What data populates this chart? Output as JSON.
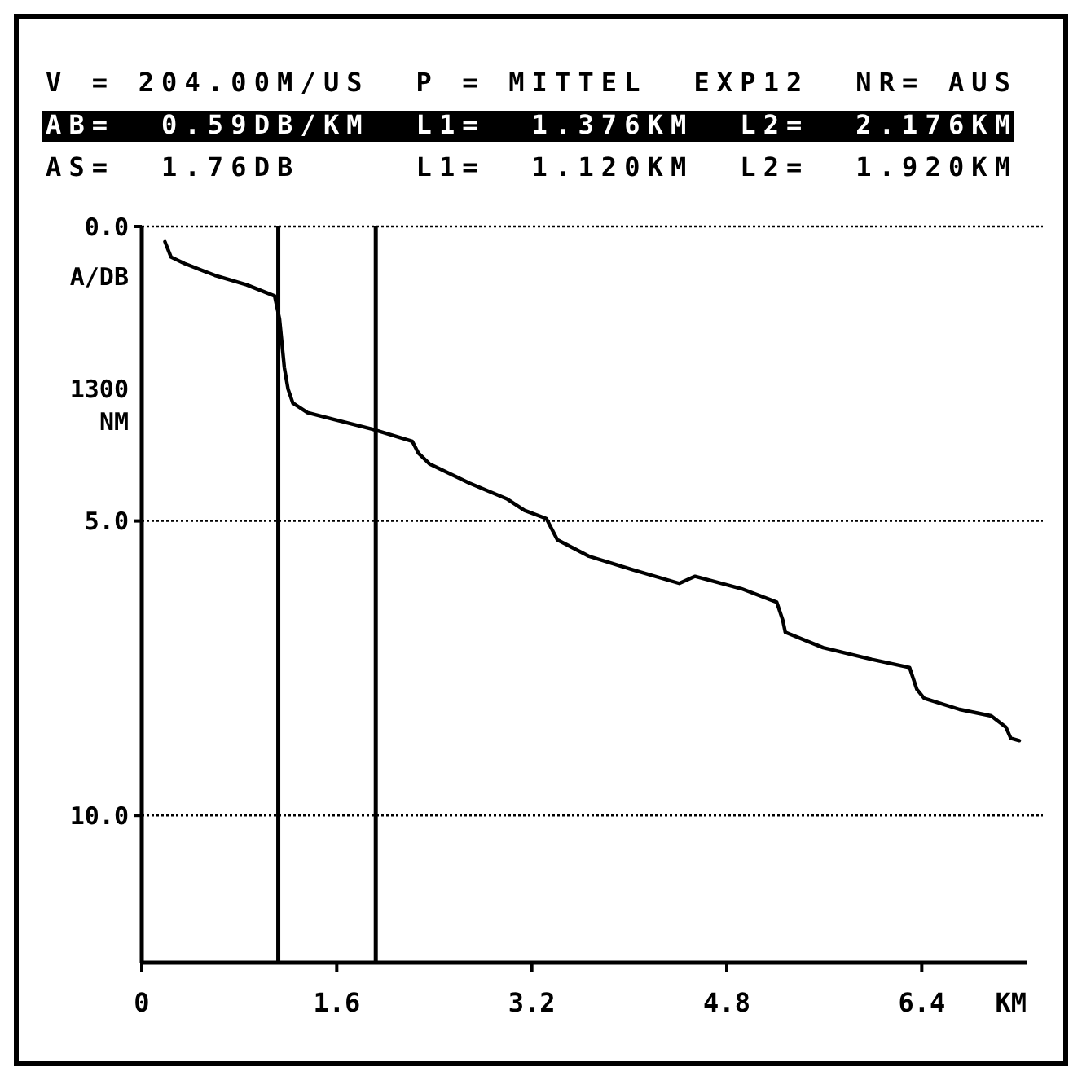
{
  "chart_data": {
    "type": "line",
    "title": "V = 204.00M/US  P = MITTEL  EXP12  NR= AUS",
    "subtitle": "AB=  0.59DB/KM  L1=  1.376KM  L2=  2.176KM",
    "annotations": [
      "AS=  1.76DB     L1=  1.120KM  L2=  1.920KM"
    ],
    "xlabel": "KM",
    "ylabel": "A/DB 1300 NM",
    "xlim": [
      0,
      7.26
    ],
    "xticks": [
      {
        "value": 0,
        "label": "0"
      },
      1.6,
      3.2,
      4.8,
      6.4
    ],
    "ylim": [
      12.5,
      0
    ],
    "yticks": [
      {
        "value": 0,
        "label": "0.0"
      },
      {
        "value": 5,
        "label": "5.0"
      },
      {
        "value": 10,
        "label": "10.0"
      }
    ],
    "grid": "y",
    "marker": "none",
    "line_style": "solid",
    "ref_lines": [
      {
        "axis": "x",
        "value": 1.12,
        "color": "#000000"
      },
      {
        "axis": "x",
        "value": 1.92,
        "color": "#000000"
      }
    ],
    "series": [
      {
        "color": "#000000",
        "x": [
          0.19,
          0.24,
          0.35,
          0.6,
          0.86,
          1.09,
          1.13,
          1.17,
          1.2,
          1.24,
          1.36,
          1.58,
          1.89,
          2.22,
          2.27,
          2.36,
          2.69,
          3.0,
          3.14,
          3.32,
          3.41,
          3.67,
          4.03,
          4.41,
          4.54,
          4.92,
          5.21,
          5.26,
          5.28,
          5.59,
          5.99,
          6.3,
          6.36,
          6.42,
          6.71,
          6.97,
          7.09,
          7.13,
          7.2
        ],
        "values": [
          0.26,
          0.52,
          0.63,
          0.83,
          0.99,
          1.18,
          1.57,
          2.4,
          2.76,
          3.0,
          3.16,
          3.28,
          3.44,
          3.65,
          3.85,
          4.03,
          4.36,
          4.63,
          4.82,
          4.96,
          5.32,
          5.6,
          5.83,
          6.06,
          5.94,
          6.15,
          6.38,
          6.69,
          6.89,
          7.15,
          7.35,
          7.49,
          7.86,
          8.01,
          8.2,
          8.31,
          8.5,
          8.69,
          8.73
        ]
      }
    ]
  }
}
